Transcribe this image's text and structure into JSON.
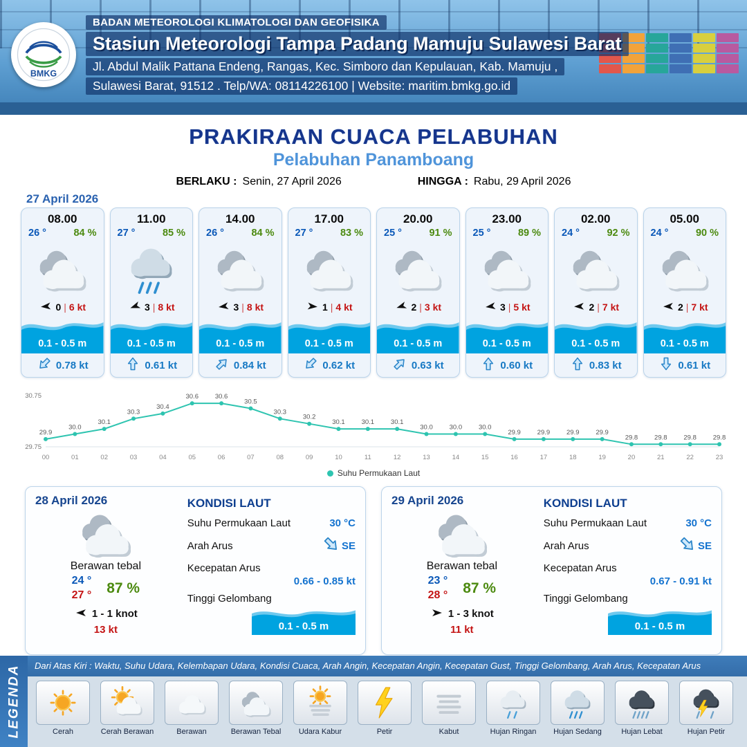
{
  "header": {
    "agency": "BADAN METEOROLOGI KLIMATOLOGI DAN GEOFISIKA",
    "station": "Stasiun Meteorologi Tampa Padang Mamuju Sulawesi Barat",
    "address_line1": "Jl. Abdul Malik Pattana Endeng, Rangas, Kec. Simboro dan Kepulauan, Kab. Mamuju ,",
    "address_line2": "Sulawesi Barat, 91512 . Telp/WA: 08114226100 | Website: maritim.bmkg.go.id",
    "logo_text": "BMKG"
  },
  "title": {
    "main": "PRAKIRAAN CUACA PELABUHAN",
    "subtitle": "Pelabuhan Panamboang",
    "berlaku_label": "BERLAKU :",
    "berlaku_value": "Senin, 27 April 2026",
    "hingga_label": "HINGGA :",
    "hingga_value": "Rabu, 29 April 2026"
  },
  "ui": {
    "wind_sep": "|"
  },
  "forecast": {
    "date": "27 April 2026",
    "cards": [
      {
        "time": "08.00",
        "temp": "26 °",
        "rh": "84 %",
        "icon": "berawan-tebal",
        "wind_deg": 265,
        "wind": "0",
        "gust": "6 kt",
        "wave": "0.1 - 0.5 m",
        "cur_deg": 225,
        "cur": "0.78 kt"
      },
      {
        "time": "11.00",
        "temp": "27 °",
        "rh": "85 %",
        "icon": "hujan-sedang",
        "wind_deg": 250,
        "wind": "3",
        "gust": "8 kt",
        "wave": "0.1 - 0.5 m",
        "cur_deg": 0,
        "cur": "0.61 kt"
      },
      {
        "time": "14.00",
        "temp": "26 °",
        "rh": "84 %",
        "icon": "berawan-tebal",
        "wind_deg": 262,
        "wind": "3",
        "gust": "8 kt",
        "wave": "0.1 - 0.5 m",
        "cur_deg": 45,
        "cur": "0.84 kt"
      },
      {
        "time": "17.00",
        "temp": "27 °",
        "rh": "83 %",
        "icon": "berawan-tebal",
        "wind_deg": 95,
        "wind": "1",
        "gust": "4 kt",
        "wave": "0.1 - 0.5 m",
        "cur_deg": 225,
        "cur": "0.62 kt"
      },
      {
        "time": "20.00",
        "temp": "25 °",
        "rh": "91 %",
        "icon": "berawan-tebal",
        "wind_deg": 252,
        "wind": "2",
        "gust": "3 kt",
        "wave": "0.1 - 0.5 m",
        "cur_deg": 45,
        "cur": "0.63 kt"
      },
      {
        "time": "23.00",
        "temp": "25 °",
        "rh": "89 %",
        "icon": "berawan-tebal",
        "wind_deg": 262,
        "wind": "3",
        "gust": "5 kt",
        "wave": "0.1 - 0.5 m",
        "cur_deg": 0,
        "cur": "0.60 kt"
      },
      {
        "time": "02.00",
        "temp": "24 °",
        "rh": "92 %",
        "icon": "berawan-tebal",
        "wind_deg": 268,
        "wind": "2",
        "gust": "7 kt",
        "wave": "0.1 - 0.5 m",
        "cur_deg": 0,
        "cur": "0.83 kt"
      },
      {
        "time": "05.00",
        "temp": "24 °",
        "rh": "90 %",
        "icon": "berawan-tebal",
        "wind_deg": 268,
        "wind": "2",
        "gust": "7 kt",
        "wave": "0.1 - 0.5 m",
        "cur_deg": 180,
        "cur": "0.61 kt"
      }
    ]
  },
  "chart_data": {
    "type": "line",
    "x": [
      "00",
      "01",
      "02",
      "03",
      "04",
      "05",
      "06",
      "07",
      "08",
      "09",
      "10",
      "11",
      "12",
      "13",
      "14",
      "15",
      "16",
      "17",
      "18",
      "19",
      "20",
      "21",
      "22",
      "23"
    ],
    "series": [
      {
        "name": "Suhu Permukaan Laut",
        "values": [
          29.9,
          30.0,
          30.1,
          30.3,
          30.4,
          30.6,
          30.6,
          30.5,
          30.3,
          30.2,
          30.1,
          30.1,
          30.1,
          30.0,
          30.0,
          30.0,
          29.9,
          29.9,
          29.9,
          29.9,
          29.8,
          29.8,
          29.8,
          29.8
        ]
      }
    ],
    "ylim": [
      29.75,
      30.75
    ],
    "yticks": [
      "30.75",
      "29.75"
    ],
    "line_color": "#2ec4b0",
    "legend_position": "bottom-center",
    "grid": false
  },
  "daily": [
    {
      "date": "28 April 2026",
      "icon": "berawan-tebal",
      "cond": "Berawan tebal",
      "tmin": "24 °",
      "tmax": "27 °",
      "rh": "87 %",
      "wind_deg": 270,
      "wind_range": "1 - 1 knot",
      "gust": "13 kt",
      "sea": {
        "title": "KONDISI LAUT",
        "sst_label": "Suhu Permukaan Laut",
        "sst": "30 °C",
        "arus_label": "Arah Arus",
        "arus_dir": "SE",
        "arus_deg": 135,
        "kec_label": "Kecepatan Arus",
        "kec": "0.66 - 0.85 kt",
        "gel_label": "Tinggi Gelombang",
        "gel": "0.1 - 0.5 m"
      }
    },
    {
      "date": "29 April 2026",
      "icon": "berawan-tebal",
      "cond": "Berawan tebal",
      "tmin": "23 °",
      "tmax": "28 °",
      "rh": "87 %",
      "wind_deg": 90,
      "wind_range": "1 - 3 knot",
      "gust": "11 kt",
      "sea": {
        "title": "KONDISI LAUT",
        "sst_label": "Suhu Permukaan Laut",
        "sst": "30 °C",
        "arus_label": "Arah Arus",
        "arus_dir": "SE",
        "arus_deg": 135,
        "kec_label": "Kecepatan Arus",
        "kec": "0.67 - 0.91 kt",
        "gel_label": "Tinggi Gelombang",
        "gel": "0.1 - 0.5 m"
      }
    }
  ],
  "legend": {
    "vertical_label": "LEGENDA",
    "description": "Dari Atas Kiri : Waktu, Suhu Udara, Kelembapan Udara, Kondisi Cuaca, Arah Angin, Kecepatan Angin, Kecepatan Gust, Tinggi Gelombang, Arah Arus, Kecepatan Arus",
    "items": [
      {
        "label": "Cerah",
        "icon": "cerah"
      },
      {
        "label": "Cerah Berawan",
        "icon": "cerah-berawan"
      },
      {
        "label": "Berawan",
        "icon": "berawan"
      },
      {
        "label": "Berawan Tebal",
        "icon": "berawan-tebal"
      },
      {
        "label": "Udara Kabur",
        "icon": "udara-kabur"
      },
      {
        "label": "Petir",
        "icon": "petir"
      },
      {
        "label": "Kabut",
        "icon": "kabut"
      },
      {
        "label": "Hujan Ringan",
        "icon": "hujan-ringan"
      },
      {
        "label": "Hujan Sedang",
        "icon": "hujan-sedang"
      },
      {
        "label": "Hujan Lebat",
        "icon": "hujan-lebat"
      },
      {
        "label": "Hujan Petir",
        "icon": "hujan-petir"
      }
    ]
  }
}
